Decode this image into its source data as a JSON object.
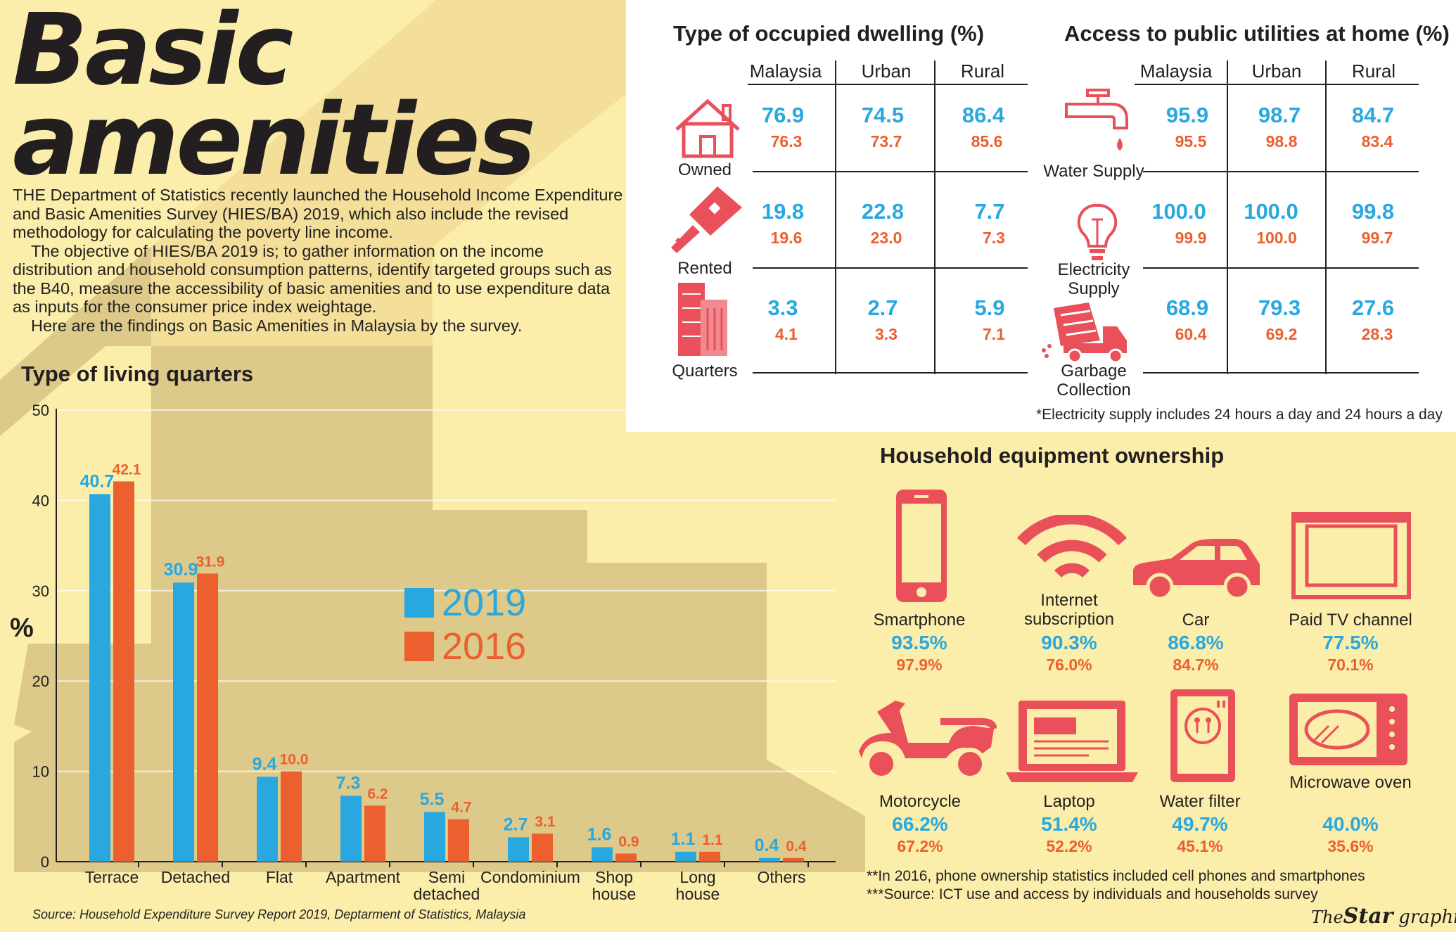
{
  "title_line1": "Basic",
  "title_line2": "amenities",
  "intro": [
    "THE Department of Statistics recently launched the Household Income Expenditure and Basic Amenities Survey (HIES/BA) 2019, which also include the revised methodology for calculating the poverty line income.",
    "The objective of HIES/BA 2019 is; to gather information on the income distribution and household consumption patterns, identify targeted groups such as the B40, measure the accessibility of basic amenities and to use expenditure data as inputs for the consumer price index weightage.",
    "Here are the findings on Basic Amenities in Malaysia by the survey."
  ],
  "colors": {
    "y2019": "#29a8e0",
    "y2016": "#ec5f2e",
    "icon": "#e9505a"
  },
  "dwelling": {
    "title": "Type of occupied dwelling (%)",
    "columns": [
      "Malaysia",
      "Urban",
      "Rural"
    ],
    "rows": [
      {
        "label": "Owned",
        "icon": "house-icon",
        "v2019": [
          "76.9",
          "74.5",
          "86.4"
        ],
        "v2016": [
          "76.3",
          "73.7",
          "85.6"
        ]
      },
      {
        "label": "Rented",
        "icon": "key-icon",
        "v2019": [
          "19.8",
          "22.8",
          "7.7"
        ],
        "v2016": [
          "19.6",
          "23.0",
          "7.3"
        ]
      },
      {
        "label": "Quarters",
        "icon": "building-icon",
        "v2019": [
          "3.3",
          "2.7",
          "5.9"
        ],
        "v2016": [
          "4.1",
          "3.3",
          "7.1"
        ]
      }
    ]
  },
  "utilities": {
    "title": "Access to public utilities at home (%)",
    "columns": [
      "Malaysia",
      "Urban",
      "Rural"
    ],
    "rows": [
      {
        "label": "Water Supply",
        "icon": "tap-icon",
        "v2019": [
          "95.9",
          "98.7",
          "84.7"
        ],
        "v2016": [
          "95.5",
          "98.8",
          "83.4"
        ]
      },
      {
        "label": "Electricity Supply",
        "icon": "lightbulb-icon",
        "v2019": [
          "100.0",
          "100.0",
          "99.8"
        ],
        "v2016": [
          "99.9",
          "100.0",
          "99.7"
        ]
      },
      {
        "label": "Garbage Collection",
        "icon": "garbage-truck-icon",
        "v2019": [
          "68.9",
          "79.3",
          "27.6"
        ],
        "v2016": [
          "60.4",
          "69.2",
          "28.3"
        ]
      }
    ],
    "note": "*Electricity supply includes 24 hours a day and 24 hours a day"
  },
  "equipment": {
    "title": "Household equipment ownership",
    "items": [
      {
        "label": "Smartphone",
        "icon": "smartphone-icon",
        "v2019": "93.5%",
        "v2016": "97.9%"
      },
      {
        "label": "Internet subscription",
        "icon": "wifi-icon",
        "v2019": "90.3%",
        "v2016": "76.0%"
      },
      {
        "label": "Car",
        "icon": "car-icon",
        "v2019": "86.8%",
        "v2016": "84.7%"
      },
      {
        "label": "Paid TV channel",
        "icon": "tv-icon",
        "v2019": "77.5%",
        "v2016": "70.1%"
      },
      {
        "label": "Motorcycle",
        "icon": "scooter-icon",
        "v2019": "66.2%",
        "v2016": "67.2%"
      },
      {
        "label": "Laptop",
        "icon": "laptop-icon",
        "v2019": "51.4%",
        "v2016": "52.2%"
      },
      {
        "label": "Water filter",
        "icon": "water-filter-icon",
        "v2019": "49.7%",
        "v2016": "45.1%"
      },
      {
        "label": "Microwave oven",
        "icon": "microwave-icon",
        "v2019": "40.0%",
        "v2016": "35.6%"
      }
    ],
    "note1": "**In 2016, phone ownership statistics included cell phones and smartphones",
    "note2": "***Source: ICT use and access by individuals and households survey"
  },
  "chart_data": {
    "type": "bar",
    "title": "Type of living quarters",
    "ylabel": "%",
    "xlabel": "",
    "ylim": [
      0,
      50
    ],
    "yticks": [
      0,
      10,
      20,
      30,
      40,
      50
    ],
    "categories": [
      "Terrace",
      "Detached",
      "Flat",
      "Apartment",
      "Semi detached",
      "Condominium",
      "Shop house",
      "Long house",
      "Others"
    ],
    "series": [
      {
        "name": "2019",
        "values": [
          40.7,
          30.9,
          9.4,
          7.3,
          5.5,
          2.7,
          1.6,
          1.1,
          0.4
        ]
      },
      {
        "name": "2016",
        "values": [
          42.1,
          31.9,
          10.0,
          6.2,
          4.7,
          3.1,
          0.9,
          1.1,
          0.4
        ]
      }
    ],
    "legend": "center",
    "grid": true
  },
  "source": "Source: Household Expenditure Survey Report 2019, Deptarment of Statistics, Malaysia",
  "brand": {
    "the": "The",
    "star": "Star",
    "graphics": "graphics"
  }
}
